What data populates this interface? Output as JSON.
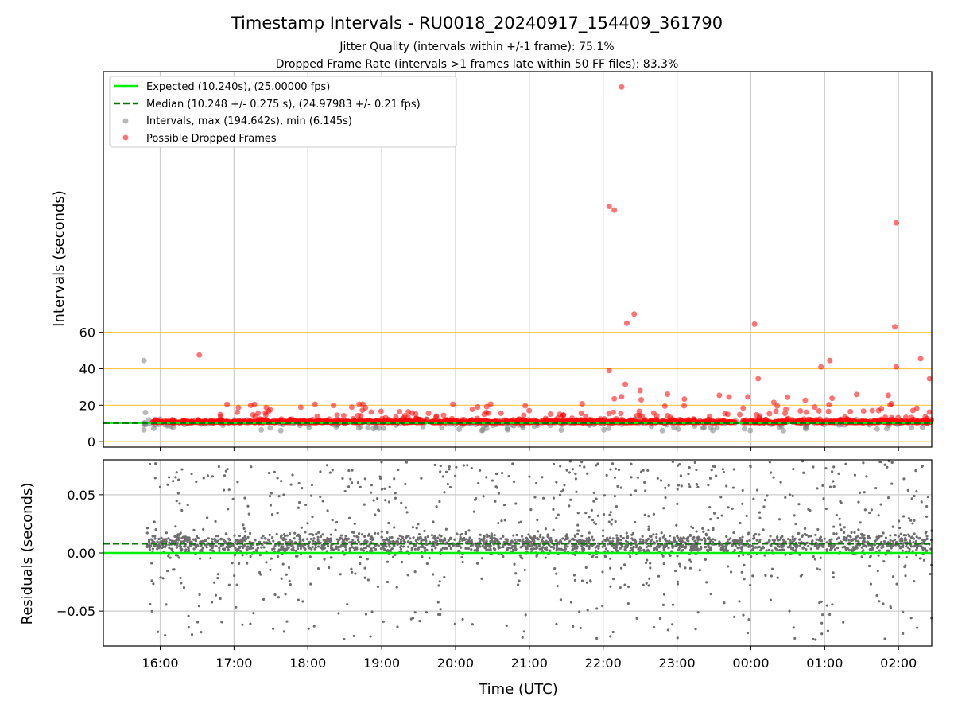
{
  "chart_data": {
    "type": "scatter",
    "title": "Timestamp Intervals - RU0018_20240917_154409_361790",
    "subtitles": [
      "Jitter Quality (intervals within +/-1 frame): 75.1%",
      "Dropped Frame Rate (intervals >1 frames late within 50 FF files): 83.3%"
    ],
    "xlabel": "Time (UTC)",
    "x_ticks": [
      "16:00",
      "17:00",
      "18:00",
      "19:00",
      "20:00",
      "21:00",
      "22:00",
      "23:00",
      "00:00",
      "01:00",
      "02:00"
    ],
    "x_tick_hours": [
      16,
      17,
      18,
      19,
      20,
      21,
      22,
      23,
      24,
      25,
      26
    ],
    "xlim_hours": [
      15.23,
      26.45
    ],
    "colors": {
      "expected": "#00ee00",
      "median": "#007700",
      "intervals": "#808080",
      "dropped": "#ff0000",
      "guide_lines": "#ffc845",
      "grid": "#cccccc"
    },
    "top_panel": {
      "ylabel": "Intervals (seconds)",
      "y_ticks": [
        "0",
        "20",
        "40",
        "60"
      ],
      "y_tick_values": [
        0,
        20,
        40,
        60
      ],
      "ylim": [
        -3,
        203
      ],
      "horizontal_guides": [
        0,
        20,
        40,
        60
      ],
      "expected_value": 10.24,
      "median_value": 10.248,
      "legend": [
        {
          "label": "Expected (10.240s), (25.00000 fps)",
          "style": "solid-line",
          "color": "#00ee00"
        },
        {
          "label": "Median (10.248 +/- 0.275 s), (24.97983 +/- 0.21 fps)",
          "style": "dashed-line",
          "color": "#007700"
        },
        {
          "label": "Intervals, max (194.642s), min (6.145s)",
          "style": "marker",
          "color": "#808080"
        },
        {
          "label": "Possible Dropped Frames",
          "style": "marker",
          "color": "#ff0000"
        }
      ],
      "dropped_frame_outliers": [
        {
          "t": 16.53,
          "v": 47.5
        },
        {
          "t": 22.08,
          "v": 129
        },
        {
          "t": 22.15,
          "v": 127
        },
        {
          "t": 22.25,
          "v": 194.6
        },
        {
          "t": 22.42,
          "v": 70
        },
        {
          "t": 22.32,
          "v": 65
        },
        {
          "t": 22.08,
          "v": 39
        },
        {
          "t": 22.3,
          "v": 31.5
        },
        {
          "t": 22.5,
          "v": 28
        },
        {
          "t": 24.05,
          "v": 64.5
        },
        {
          "t": 24.1,
          "v": 34.5
        },
        {
          "t": 24.95,
          "v": 41
        },
        {
          "t": 25.07,
          "v": 44.5
        },
        {
          "t": 25.97,
          "v": 120
        },
        {
          "t": 25.95,
          "v": 63
        },
        {
          "t": 25.97,
          "v": 41
        },
        {
          "t": 26.3,
          "v": 45.5
        },
        {
          "t": 26.42,
          "v": 34.5
        },
        {
          "t": 22.87,
          "v": 26
        },
        {
          "t": 22.15,
          "v": 23.5
        }
      ],
      "interval_outliers": [
        {
          "t": 15.78,
          "v": 44.5
        },
        {
          "t": 15.8,
          "v": 16
        },
        {
          "t": 15.78,
          "v": 6.5
        }
      ]
    },
    "bottom_panel": {
      "ylabel": "Residuals (seconds)",
      "y_ticks": [
        "0.05",
        "0.00",
        "−0.05"
      ],
      "y_tick_values": [
        0.05,
        0.0,
        -0.05
      ],
      "ylim": [
        -0.08,
        0.08
      ],
      "expected_residual": 0.0,
      "median_residual": 0.008
    }
  }
}
